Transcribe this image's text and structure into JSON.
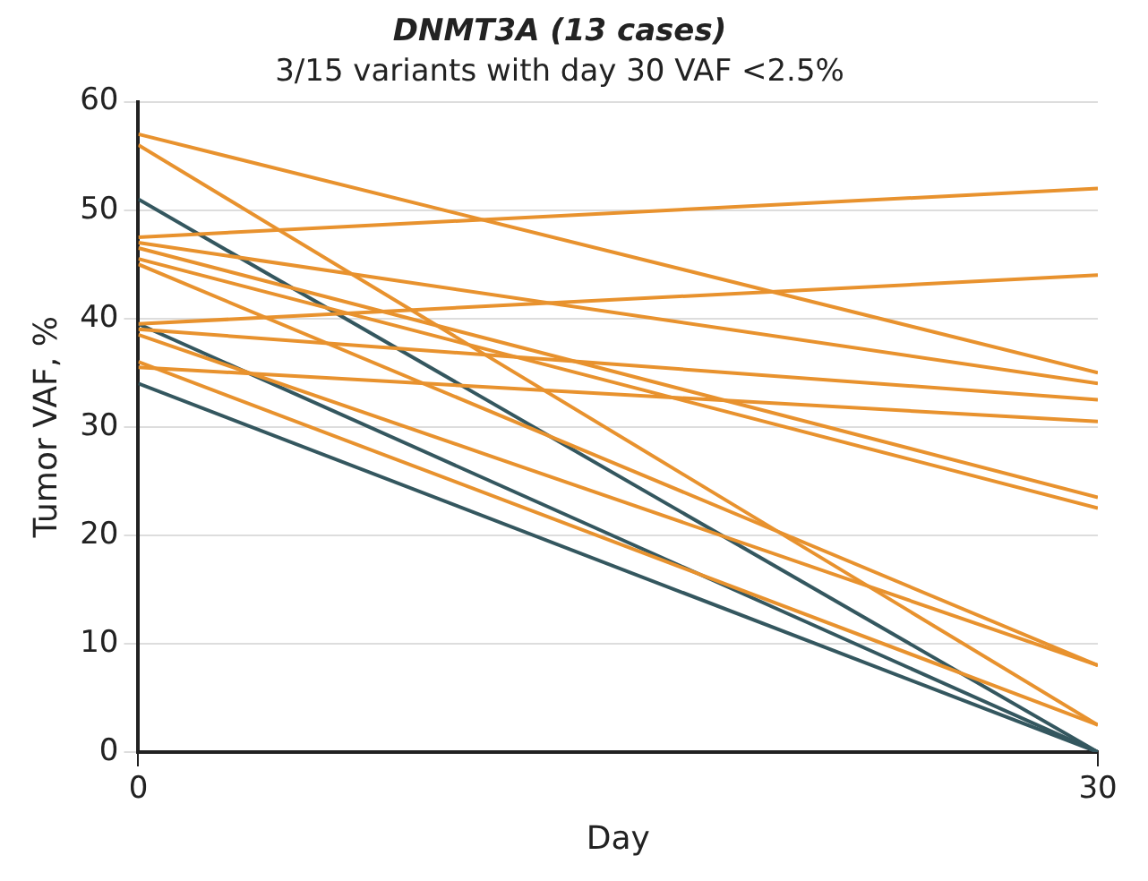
{
  "chart_data": {
    "type": "line",
    "title": "DNMT3A (13 cases)",
    "subtitle": "3/15 variants with day 30 VAF <2.5%",
    "xlabel": "Day",
    "ylabel": "Tumor VAF, %",
    "x": [
      0,
      30
    ],
    "xlim": [
      0,
      30
    ],
    "xticks": [
      0,
      30
    ],
    "ylim": [
      0,
      60
    ],
    "yticks": [
      0,
      10,
      20,
      30,
      40,
      50,
      60
    ],
    "grid": "y",
    "legend": false,
    "marker": "none",
    "series": [
      {
        "color": "#e8922e",
        "values": [
          57,
          35
        ]
      },
      {
        "color": "#e8922e",
        "values": [
          56,
          2.5
        ]
      },
      {
        "color": "#e8922e",
        "values": [
          47.5,
          52
        ]
      },
      {
        "color": "#e8922e",
        "values": [
          47,
          34
        ]
      },
      {
        "color": "#e8922e",
        "values": [
          46.5,
          23.5
        ]
      },
      {
        "color": "#e8922e",
        "values": [
          45.5,
          22.5
        ]
      },
      {
        "color": "#e8922e",
        "values": [
          45,
          8
        ]
      },
      {
        "color": "#e8922e",
        "values": [
          39.5,
          44
        ]
      },
      {
        "color": "#e8922e",
        "values": [
          39,
          32.5
        ]
      },
      {
        "color": "#e8922e",
        "values": [
          38.5,
          8
        ]
      },
      {
        "color": "#e8922e",
        "values": [
          36,
          2.5
        ]
      },
      {
        "color": "#e8922e",
        "values": [
          35.5,
          30.5
        ]
      },
      {
        "color": "#34575f",
        "values": [
          51,
          0
        ]
      },
      {
        "color": "#34575f",
        "values": [
          39.5,
          0
        ]
      },
      {
        "color": "#34575f",
        "values": [
          34,
          0
        ]
      }
    ]
  }
}
